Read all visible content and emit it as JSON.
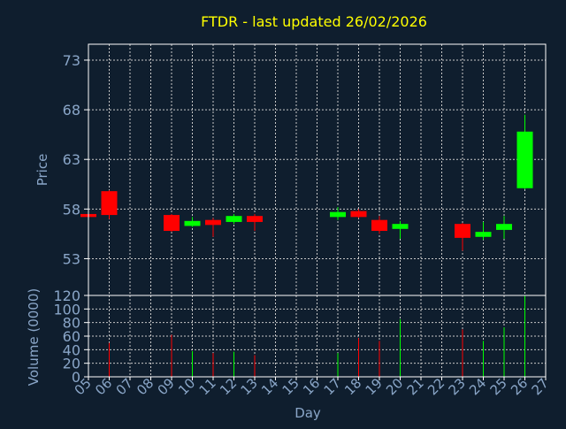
{
  "chart_data": {
    "type": "candlestick",
    "title": "FTDR - last updated 26/02/2026",
    "xlabel": "Day",
    "price_panel": {
      "ylabel": "Price",
      "yticks": [
        53,
        58,
        63,
        68,
        73
      ],
      "ylim": [
        49.3,
        74.6
      ]
    },
    "volume_panel": {
      "ylabel": "Volume (0000)",
      "yticks": [
        0,
        20,
        40,
        60,
        80,
        100,
        120
      ],
      "ylim": [
        0,
        120
      ]
    },
    "x_ticks": [
      "05",
      "06",
      "07",
      "08",
      "09",
      "10",
      "11",
      "12",
      "13",
      "14",
      "15",
      "16",
      "17",
      "18",
      "19",
      "20",
      "21",
      "22",
      "23",
      "24",
      "25",
      "26",
      "27"
    ],
    "grid": true,
    "colors": {
      "up": "#00ff00",
      "down": "#ff0000",
      "background": "#0f1e2e",
      "grid": "#c8c8c8",
      "title": "#ffff00",
      "text": "#8aa6c8"
    },
    "candles": [
      {
        "day": "05",
        "open": 57.5,
        "close": 57.2,
        "high": 57.6,
        "low": 57.1,
        "volume": 0
      },
      {
        "day": "06",
        "open": 59.8,
        "close": 57.4,
        "high": 59.9,
        "low": 57.0,
        "volume": 50
      },
      {
        "day": "09",
        "open": 57.4,
        "close": 55.8,
        "high": 57.5,
        "low": 55.7,
        "volume": 62
      },
      {
        "day": "10",
        "open": 56.3,
        "close": 56.8,
        "high": 57.2,
        "low": 56.2,
        "volume": 38
      },
      {
        "day": "11",
        "open": 56.9,
        "close": 56.4,
        "high": 57.1,
        "low": 55.2,
        "volume": 35
      },
      {
        "day": "12",
        "open": 56.7,
        "close": 57.3,
        "high": 57.5,
        "low": 56.5,
        "volume": 37
      },
      {
        "day": "13",
        "open": 57.3,
        "close": 56.7,
        "high": 57.5,
        "low": 55.8,
        "volume": 32
      },
      {
        "day": "17",
        "open": 57.2,
        "close": 57.7,
        "high": 58.2,
        "low": 56.9,
        "volume": 35
      },
      {
        "day": "18",
        "open": 57.8,
        "close": 57.2,
        "high": 58.0,
        "low": 57.1,
        "volume": 57
      },
      {
        "day": "19",
        "open": 56.9,
        "close": 55.8,
        "high": 57.3,
        "low": 55.5,
        "volume": 53
      },
      {
        "day": "20",
        "open": 56.0,
        "close": 56.5,
        "high": 56.8,
        "low": 55.0,
        "volume": 85
      },
      {
        "day": "23",
        "open": 56.5,
        "close": 55.1,
        "high": 56.6,
        "low": 53.8,
        "volume": 70
      },
      {
        "day": "24",
        "open": 55.2,
        "close": 55.7,
        "high": 56.7,
        "low": 54.9,
        "volume": 53
      },
      {
        "day": "25",
        "open": 55.9,
        "close": 56.5,
        "high": 57.3,
        "low": 55.0,
        "volume": 73
      },
      {
        "day": "26",
        "open": 60.1,
        "close": 65.8,
        "high": 67.5,
        "low": 60.0,
        "volume": 120
      }
    ]
  }
}
